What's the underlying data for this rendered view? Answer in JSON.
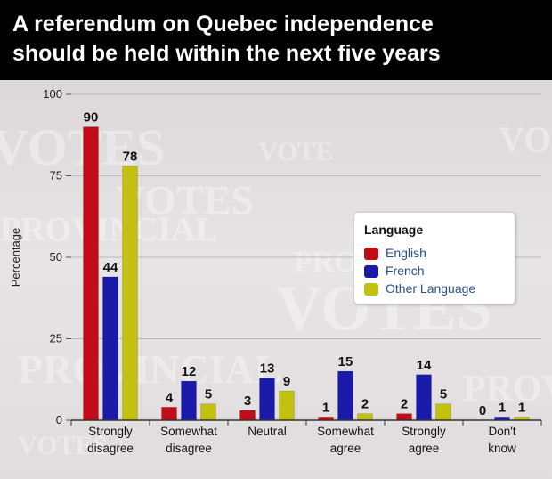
{
  "title": {
    "line1": "A referendum on Quebec independence",
    "line2": "should be held within the next five years"
  },
  "background_text": {
    "words": [
      "VOTES",
      "PROVINCIAL",
      "VOTE",
      "PROVINCIAL VOTES"
    ]
  },
  "colors": {
    "English": "#c00d17",
    "French": "#1a1aa8",
    "Other Language": "#c2c011",
    "title_bar": "#000000"
  },
  "legend": {
    "title": "Language",
    "items": [
      "English",
      "French",
      "Other Language"
    ],
    "placement": "top-right"
  },
  "chart_data": {
    "type": "bar",
    "title": "A referendum on Quebec independence should be held within the next five years",
    "xlabel": "",
    "ylabel": "Percentage",
    "ylim": [
      0,
      100
    ],
    "yticks": [
      0,
      25,
      50,
      75,
      100
    ],
    "grid": true,
    "legend_placement": "top-right",
    "categories": [
      [
        "Strongly",
        "disagree"
      ],
      [
        "Somewhat",
        "disagree"
      ],
      [
        "Neutral"
      ],
      [
        "Somewhat",
        "agree"
      ],
      [
        "Strongly",
        "agree"
      ],
      [
        "Don't",
        "know"
      ]
    ],
    "series": [
      {
        "name": "English",
        "values": [
          90,
          4,
          3,
          1,
          2,
          0
        ]
      },
      {
        "name": "French",
        "values": [
          44,
          12,
          13,
          15,
          14,
          1
        ]
      },
      {
        "name": "Other Language",
        "values": [
          78,
          5,
          9,
          2,
          5,
          1
        ]
      }
    ]
  }
}
